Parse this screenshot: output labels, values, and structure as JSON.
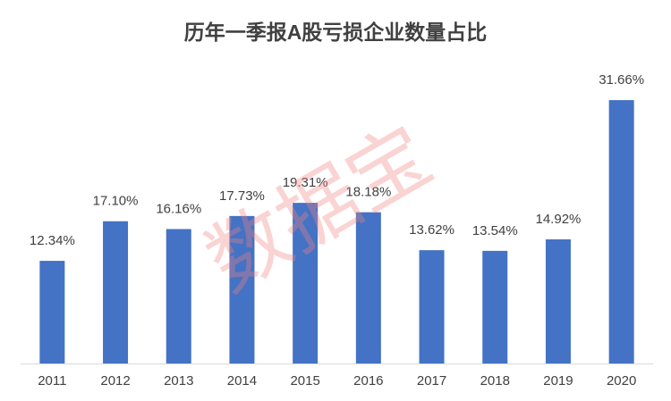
{
  "chart_data": {
    "type": "bar",
    "title": "历年一季报A股亏损企业数量占比",
    "categories": [
      "2011",
      "2012",
      "2013",
      "2014",
      "2015",
      "2016",
      "2017",
      "2018",
      "2019",
      "2020"
    ],
    "values": [
      12.34,
      17.1,
      16.16,
      17.73,
      19.31,
      18.18,
      13.62,
      13.54,
      14.92,
      31.66
    ],
    "value_labels": [
      "12.34%",
      "17.10%",
      "16.16%",
      "17.73%",
      "19.31%",
      "18.18%",
      "13.62%",
      "13.54%",
      "14.92%",
      "31.66%"
    ],
    "color": "#4472c4",
    "ylim": [
      0,
      35
    ],
    "watermark": "数据宝"
  }
}
